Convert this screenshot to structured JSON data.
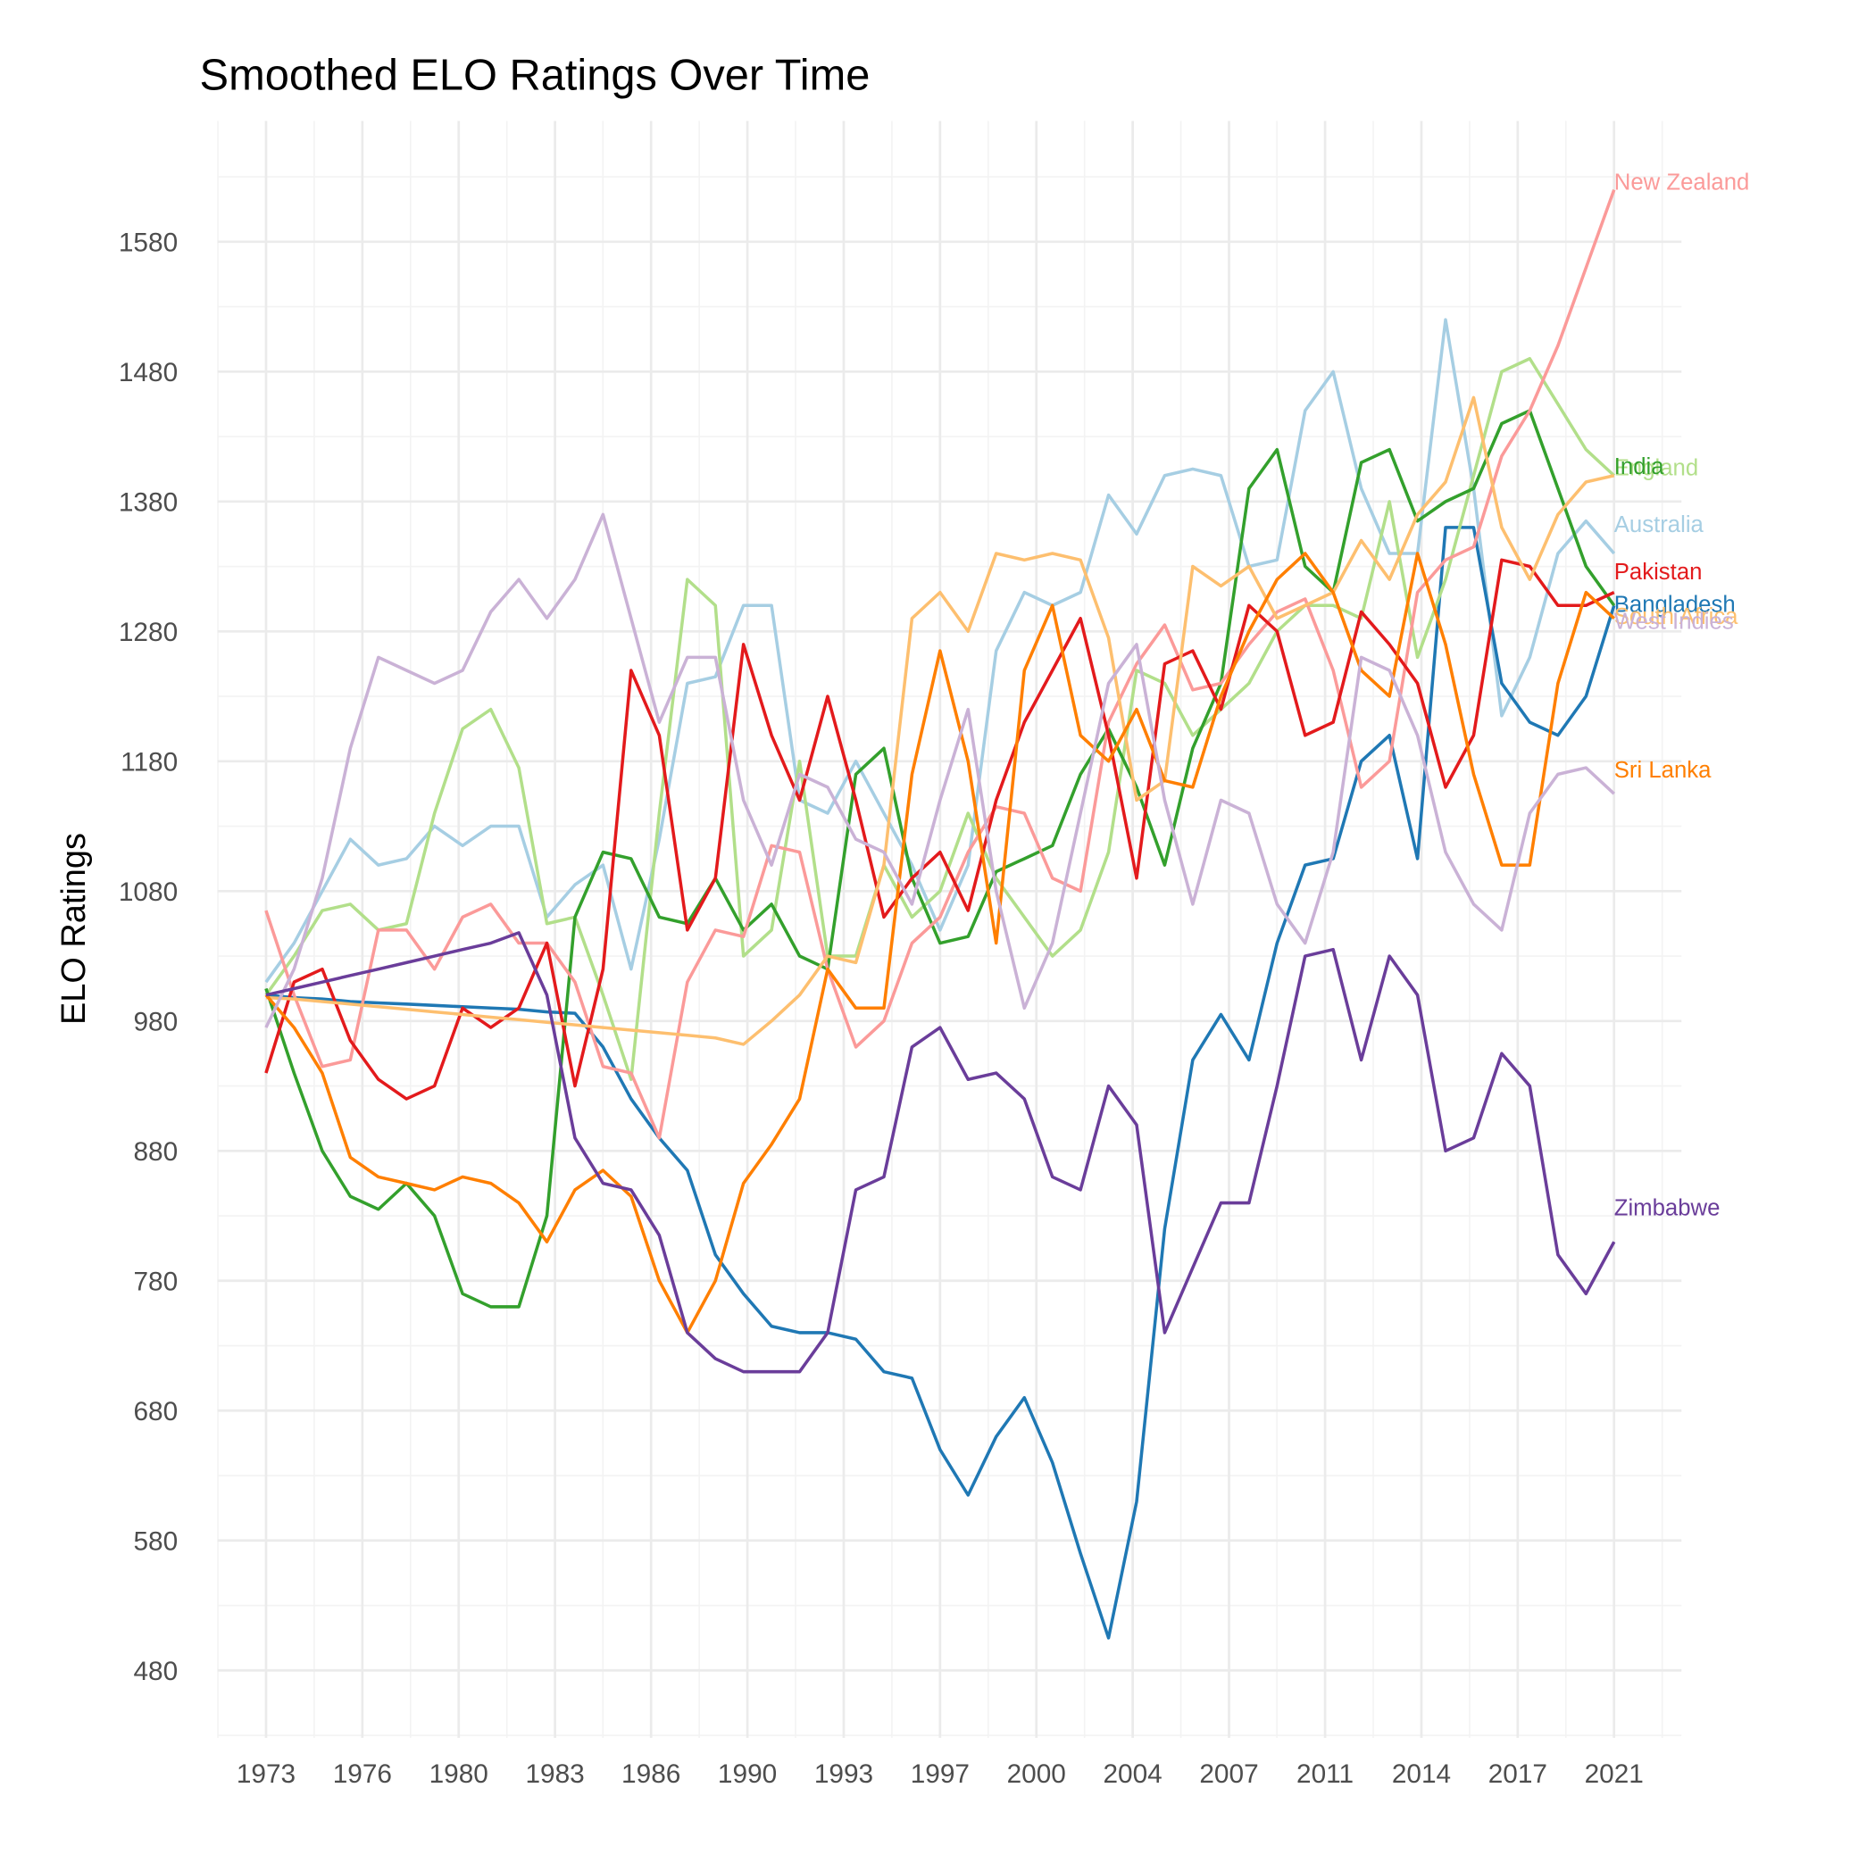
{
  "chart_data": {
    "type": "line",
    "title": "Smoothed ELO Ratings Over Time",
    "y_label": "ELO Ratings",
    "x": [
      1973,
      1974,
      1975,
      1976,
      1977,
      1978,
      1979,
      1980,
      1981,
      1982,
      1983,
      1984,
      1985,
      1986,
      1987,
      1988,
      1989,
      1990,
      1991,
      1992,
      1993,
      1994,
      1995,
      1996,
      1997,
      1998,
      1999,
      2000,
      2001,
      2002,
      2003,
      2004,
      2005,
      2006,
      2007,
      2008,
      2009,
      2010,
      2011,
      2012,
      2013,
      2014,
      2015,
      2016,
      2017,
      2018,
      2019,
      2020,
      2021
    ],
    "xlim": [
      1971.28,
      2023.4
    ],
    "xticks": [
      {
        "value": 1973,
        "label": "1973"
      },
      {
        "value": 1976.43,
        "label": "1976"
      },
      {
        "value": 1979.86,
        "label": "1980"
      },
      {
        "value": 1983.29,
        "label": "1983"
      },
      {
        "value": 1986.71,
        "label": "1986"
      },
      {
        "value": 1990.14,
        "label": "1990"
      },
      {
        "value": 1993.57,
        "label": "1993"
      },
      {
        "value": 1997,
        "label": "1997"
      },
      {
        "value": 2000.43,
        "label": "2000"
      },
      {
        "value": 2003.86,
        "label": "2004"
      },
      {
        "value": 2007.29,
        "label": "2007"
      },
      {
        "value": 2010.71,
        "label": "2011"
      },
      {
        "value": 2014.14,
        "label": "2014"
      },
      {
        "value": 2017.57,
        "label": "2017"
      },
      {
        "value": 2021,
        "label": "2021"
      }
    ],
    "ylim": [
      428,
      1673
    ],
    "yticks": [
      480,
      580,
      680,
      780,
      880,
      980,
      1080,
      1180,
      1280,
      1380,
      1480,
      1580
    ],
    "grid": true,
    "series": [
      {
        "name": "Australia",
        "color": "#a6cee3",
        "values": [
          1010,
          1040,
          1080,
          1120,
          1100,
          1105,
          1130,
          1115,
          1130,
          1130,
          1060,
          1085,
          1100,
          1020,
          1120,
          1240,
          1245,
          1300,
          1300,
          1150,
          1140,
          1180,
          1140,
          1100,
          1050,
          1100,
          1265,
          1310,
          1300,
          1310,
          1385,
          1355,
          1400,
          1405,
          1400,
          1330,
          1335,
          1450,
          1480,
          1390,
          1340,
          1340,
          1520,
          1390,
          1215,
          1260,
          1340,
          1365,
          1340
        ]
      },
      {
        "name": "Bangladesh",
        "color": "#1f78b4",
        "values": [
          1000,
          998,
          997,
          995,
          994,
          993,
          992,
          991,
          990,
          989,
          987,
          986,
          960,
          920,
          890,
          865,
          800,
          770,
          745,
          740,
          740,
          735,
          710,
          705,
          650,
          615,
          660,
          690,
          640,
          570,
          505,
          610,
          820,
          950,
          985,
          950,
          1040,
          1100,
          1105,
          1180,
          1200,
          1105,
          1360,
          1360,
          1240,
          1210,
          1200,
          1230,
          1300
        ]
      },
      {
        "name": "England",
        "color": "#b2df8a",
        "values": [
          1000,
          1030,
          1065,
          1070,
          1050,
          1055,
          1140,
          1205,
          1220,
          1175,
          1055,
          1060,
          1000,
          935,
          1140,
          1320,
          1300,
          1030,
          1050,
          1180,
          1030,
          1030,
          1100,
          1060,
          1080,
          1140,
          1090,
          1060,
          1030,
          1050,
          1110,
          1250,
          1240,
          1200,
          1220,
          1240,
          1280,
          1300,
          1300,
          1290,
          1380,
          1260,
          1320,
          1400,
          1480,
          1490,
          1455,
          1420,
          1400
        ]
      },
      {
        "name": "India",
        "color": "#33a02c",
        "values": [
          1005,
          940,
          880,
          845,
          835,
          855,
          830,
          770,
          760,
          760,
          830,
          1060,
          1110,
          1105,
          1060,
          1055,
          1090,
          1050,
          1070,
          1030,
          1020,
          1170,
          1190,
          1090,
          1040,
          1045,
          1095,
          1105,
          1115,
          1170,
          1205,
          1160,
          1100,
          1190,
          1240,
          1390,
          1420,
          1330,
          1310,
          1410,
          1420,
          1365,
          1380,
          1390,
          1440,
          1450,
          1390,
          1330,
          1300
        ]
      },
      {
        "name": "New Zealand",
        "color": "#fb9a99",
        "values": [
          1065,
          1000,
          945,
          950,
          1050,
          1050,
          1020,
          1060,
          1070,
          1040,
          1040,
          1010,
          945,
          940,
          890,
          1010,
          1050,
          1045,
          1115,
          1110,
          1020,
          960,
          980,
          1040,
          1060,
          1110,
          1145,
          1140,
          1090,
          1080,
          1210,
          1255,
          1285,
          1235,
          1240,
          1270,
          1295,
          1305,
          1250,
          1160,
          1180,
          1310,
          1335,
          1345,
          1415,
          1450,
          1500,
          1560,
          1620
        ]
      },
      {
        "name": "Pakistan",
        "color": "#e31a1c",
        "values": [
          940,
          1010,
          1020,
          965,
          935,
          920,
          930,
          990,
          975,
          990,
          1040,
          930,
          1020,
          1250,
          1200,
          1050,
          1090,
          1270,
          1200,
          1150,
          1230,
          1150,
          1060,
          1090,
          1110,
          1065,
          1150,
          1210,
          1250,
          1290,
          1200,
          1090,
          1255,
          1265,
          1220,
          1300,
          1280,
          1200,
          1210,
          1295,
          1270,
          1240,
          1160,
          1200,
          1335,
          1330,
          1300,
          1300,
          1310
        ]
      },
      {
        "name": "South Africa",
        "color": "#fdbf6f",
        "values": [
          998,
          997,
          995,
          993,
          991,
          989,
          987,
          985,
          983,
          981,
          979,
          977,
          975,
          973,
          971,
          969,
          967,
          962,
          980,
          1000,
          1030,
          1025,
          1100,
          1290,
          1310,
          1280,
          1340,
          1335,
          1340,
          1335,
          1275,
          1150,
          1165,
          1330,
          1315,
          1330,
          1290,
          1300,
          1310,
          1350,
          1320,
          1370,
          1395,
          1460,
          1360,
          1320,
          1370,
          1395,
          1400
        ]
      },
      {
        "name": "Sri Lanka",
        "color": "#ff7f00",
        "values": [
          1000,
          975,
          940,
          875,
          860,
          855,
          850,
          860,
          855,
          840,
          810,
          850,
          865,
          845,
          780,
          740,
          780,
          855,
          885,
          920,
          1020,
          990,
          990,
          1170,
          1265,
          1180,
          1040,
          1250,
          1300,
          1200,
          1180,
          1220,
          1165,
          1160,
          1230,
          1280,
          1320,
          1340,
          1310,
          1250,
          1230,
          1340,
          1270,
          1170,
          1100,
          1100,
          1240,
          1310,
          1290
        ]
      },
      {
        "name": "West Indies",
        "color": "#cab2d6",
        "values": [
          975,
          1020,
          1090,
          1190,
          1260,
          1250,
          1240,
          1250,
          1295,
          1320,
          1290,
          1320,
          1370,
          1290,
          1210,
          1260,
          1260,
          1150,
          1100,
          1170,
          1160,
          1120,
          1110,
          1070,
          1150,
          1220,
          1080,
          990,
          1040,
          1140,
          1240,
          1270,
          1150,
          1070,
          1150,
          1140,
          1070,
          1040,
          1110,
          1260,
          1250,
          1200,
          1110,
          1070,
          1050,
          1140,
          1170,
          1175,
          1155
        ]
      },
      {
        "name": "Zimbabwe",
        "color": "#6a3d9a",
        "values": [
          1000,
          1005,
          1010,
          1015,
          1020,
          1025,
          1030,
          1035,
          1040,
          1048,
          1000,
          890,
          855,
          850,
          815,
          740,
          720,
          710,
          710,
          710,
          740,
          850,
          860,
          960,
          975,
          935,
          940,
          920,
          860,
          850,
          930,
          900,
          740,
          790,
          840,
          840,
          930,
          1030,
          1035,
          950,
          1030,
          1000,
          880,
          890,
          955,
          930,
          800,
          770,
          810
        ]
      }
    ]
  }
}
